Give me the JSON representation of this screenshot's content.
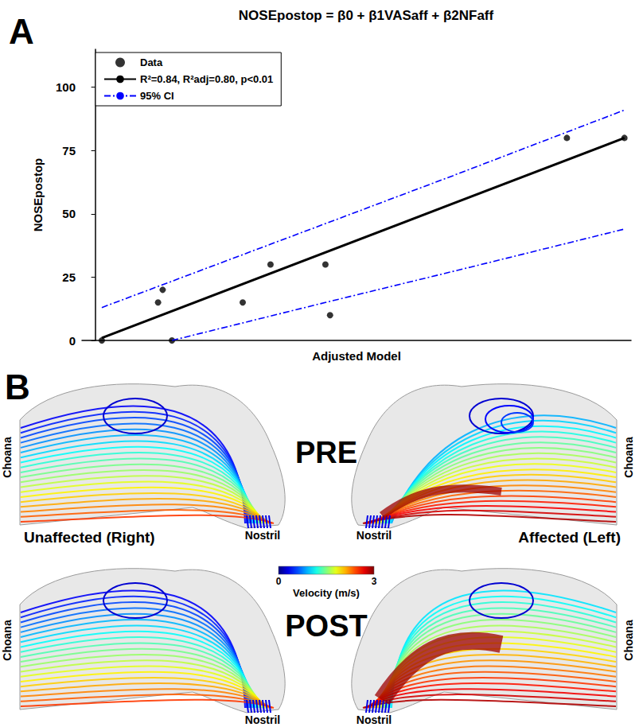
{
  "chart_data": {
    "type": "scatter",
    "panel_label": "A",
    "title": "NOSEpostop = β0 + β1VASaff + β2NFaff",
    "x_label": "Adjusted Model",
    "y_label": "NOSEpostop",
    "xlim": [
      -2,
      81
    ],
    "ylim": [
      0,
      115
    ],
    "yticks": [
      0,
      25,
      50,
      75,
      100
    ],
    "tick_labels": "y",
    "grid": false,
    "legend": "upper left",
    "series": [
      {
        "name": "Data",
        "type": "scatter",
        "color": "#000000",
        "marker": "circle",
        "x": [
          1,
          9.5,
          11.6,
          10.2,
          22.3,
          26.5,
          34.8,
          35.5,
          71.3,
          80
        ],
        "values": [
          0,
          15,
          0,
          20,
          15,
          30,
          30,
          10,
          80,
          80
        ]
      },
      {
        "name": "R²=0.84, R²adj=0.80, p<0.01",
        "type": "line",
        "color": "#000000",
        "line_style": "solid",
        "x": [
          1,
          80
        ],
        "values": [
          1,
          80
        ]
      },
      {
        "name": "95% CI",
        "type": "line",
        "color": "#0000ff",
        "line_style": "dashdot",
        "x": [
          1,
          26.5,
          54,
          80
        ],
        "values": [
          13,
          38,
          65,
          91
        ]
      },
      {
        "name": "95% CI",
        "type": "line",
        "color": "#0000ff",
        "line_style": "dashdot",
        "x": [
          11.6,
          34.8,
          56.8,
          80
        ],
        "values": [
          0,
          15,
          29,
          44
        ]
      }
    ]
  },
  "panel_b": {
    "panel_label": "B",
    "rows": [
      "PRE",
      "POST"
    ],
    "sides": [
      "Unaffected (Right)",
      "Affected (Left)"
    ],
    "inlet_label": "Nostril",
    "outlet_label": "Choana",
    "colorbar": {
      "title": "Velocity (m/s)",
      "range": [
        0,
        3
      ],
      "ticks": [
        0,
        3
      ]
    }
  }
}
